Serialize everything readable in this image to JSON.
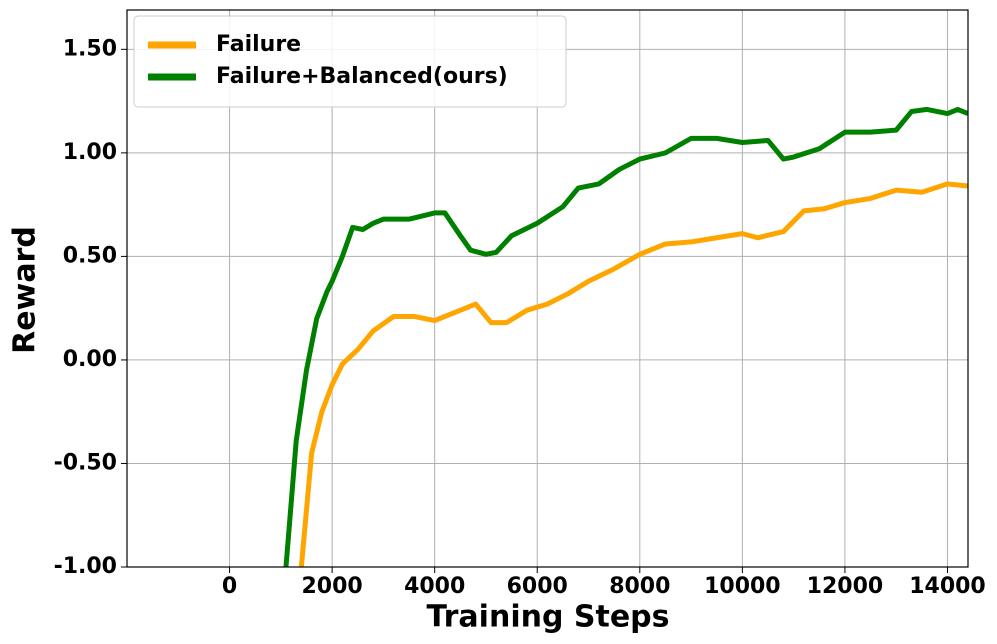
{
  "chart_data": {
    "type": "line",
    "xlabel": "Training Steps",
    "ylabel": "Reward",
    "xlim": [
      -2000,
      14400
    ],
    "ylim": [
      -1.0,
      1.69
    ],
    "xticks": [
      0,
      2000,
      4000,
      6000,
      8000,
      10000,
      12000,
      14000
    ],
    "yticks": [
      {
        "value": -1.0,
        "label": "-1.00"
      },
      {
        "value": -0.5,
        "label": "-0.50"
      },
      {
        "value": 0,
        "label": "0.00"
      },
      {
        "value": 0.5,
        "label": "0.50"
      },
      {
        "value": 1.0,
        "label": "1.00"
      },
      {
        "value": 1.5,
        "label": "1.50"
      }
    ],
    "grid": true,
    "legend": "upper left",
    "series": [
      {
        "name": "Failure",
        "color": "#ffa500",
        "x": [
          1400,
          1600,
          1800,
          2000,
          2200,
          2500,
          2800,
          3200,
          3600,
          4000,
          4400,
          4800,
          5100,
          5400,
          5800,
          6200,
          6600,
          7000,
          7500,
          8000,
          8500,
          9000,
          9500,
          10000,
          10300,
          10800,
          11200,
          11600,
          12000,
          12500,
          13000,
          13500,
          14000,
          14400
        ],
        "values": [
          -1.0,
          -0.45,
          -0.25,
          -0.12,
          -0.02,
          0.05,
          0.14,
          0.21,
          0.21,
          0.19,
          0.23,
          0.27,
          0.18,
          0.18,
          0.24,
          0.27,
          0.32,
          0.38,
          0.44,
          0.51,
          0.56,
          0.57,
          0.59,
          0.61,
          0.59,
          0.62,
          0.72,
          0.73,
          0.76,
          0.78,
          0.82,
          0.81,
          0.85,
          0.84
        ]
      },
      {
        "name": "Failure+Balanced(ours)",
        "color": "#008000",
        "x": [
          1100,
          1300,
          1500,
          1700,
          1900,
          2000,
          2200,
          2400,
          2600,
          2800,
          3000,
          3500,
          4000,
          4200,
          4500,
          4700,
          5000,
          5200,
          5500,
          6000,
          6500,
          6800,
          7200,
          7600,
          8000,
          8500,
          9000,
          9500,
          10000,
          10500,
          10800,
          11000,
          11500,
          12000,
          12500,
          13000,
          13300,
          13600,
          14000,
          14200,
          14400
        ],
        "values": [
          -1.0,
          -0.39,
          -0.05,
          0.2,
          0.33,
          0.38,
          0.5,
          0.64,
          0.63,
          0.66,
          0.68,
          0.68,
          0.71,
          0.71,
          0.6,
          0.53,
          0.51,
          0.52,
          0.6,
          0.66,
          0.74,
          0.83,
          0.85,
          0.92,
          0.97,
          1.0,
          1.07,
          1.07,
          1.05,
          1.06,
          0.97,
          0.98,
          1.02,
          1.1,
          1.1,
          1.11,
          1.2,
          1.21,
          1.19,
          1.21,
          1.19
        ]
      }
    ]
  }
}
